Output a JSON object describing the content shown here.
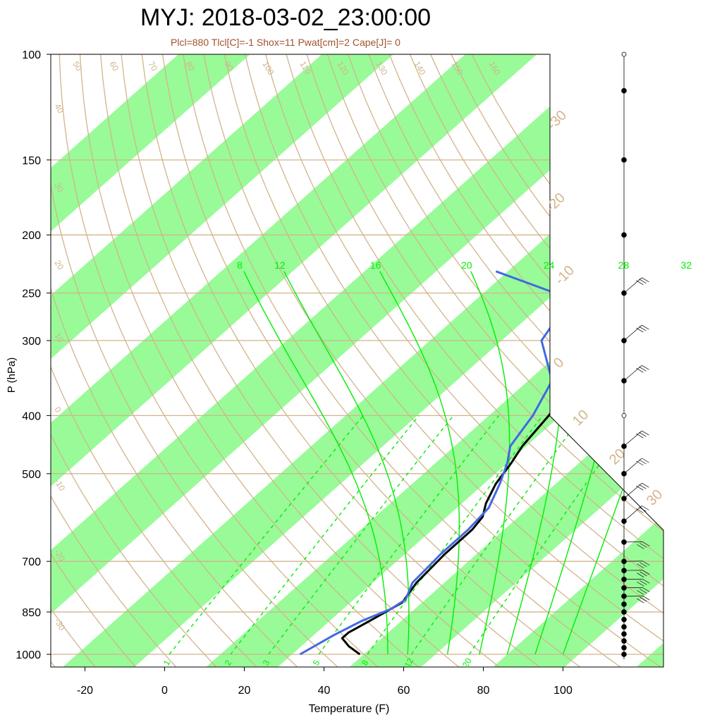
{
  "chart_data": {
    "type": "line",
    "title": "MYJ: 2018-03-02_23:00:00",
    "subtitle": "Plcl=880 Tlcl[C]=-1 Shox=11 Pwat[cm]=2 Cape[J]= 0",
    "xlabel": "Temperature (F)",
    "ylabel": "P (hPa)",
    "xlim": [
      -28,
      116
    ],
    "ylim": [
      1030,
      100
    ],
    "x_ticks": [
      -20,
      0,
      20,
      40,
      60,
      80,
      100
    ],
    "y_ticks": [
      100,
      150,
      200,
      250,
      300,
      400,
      500,
      700,
      850,
      1000
    ],
    "colors": {
      "band_fill": "#98fb98",
      "gridline": "#d2b48c",
      "mixing_ratio": "#00ee00",
      "temperature": "#000000",
      "dewpoint": "#4169e1",
      "subtitle": "#a0522d"
    },
    "skew_temp_labels_c": [
      "-30",
      "-20",
      "-10",
      "0",
      "10",
      "20",
      "30"
    ],
    "dry_adiabat_labels": [
      "50",
      "60",
      "70",
      "80",
      "90",
      "100",
      "110",
      "120",
      "130",
      "140",
      "150",
      "160"
    ],
    "left_edge_adiabat_labels": [
      "40",
      "30",
      "20",
      "10",
      "0",
      "-10",
      "-20",
      "-30"
    ],
    "moist_adiabat_labels": [
      "8",
      "12",
      "16",
      "20",
      "24",
      "28",
      "32"
    ],
    "mixing_ratio_labels": [
      "1",
      "2",
      "3",
      "5",
      "8",
      "12",
      "20"
    ],
    "series": [
      {
        "name": "temperature",
        "points": [
          {
            "p": 1000,
            "t": 49
          },
          {
            "p": 970,
            "t": 44
          },
          {
            "p": 940,
            "t": 40
          },
          {
            "p": 920,
            "t": 40
          },
          {
            "p": 880,
            "t": 42
          },
          {
            "p": 820,
            "t": 45
          },
          {
            "p": 760,
            "t": 43
          },
          {
            "p": 680,
            "t": 42
          },
          {
            "p": 620,
            "t": 42
          },
          {
            "p": 590,
            "t": 41
          },
          {
            "p": 560,
            "t": 38
          },
          {
            "p": 520,
            "t": 35
          },
          {
            "p": 480,
            "t": 33
          },
          {
            "p": 450,
            "t": 31
          },
          {
            "p": 400,
            "t": 29
          },
          {
            "p": 355,
            "t": 26
          },
          {
            "p": 330,
            "t": 21
          },
          {
            "p": 300,
            "t": 15
          },
          {
            "p": 270,
            "t": 12
          },
          {
            "p": 250,
            "t": 22
          },
          {
            "p": 232,
            "t": 31
          }
        ]
      },
      {
        "name": "dewpoint",
        "points": [
          {
            "p": 1000,
            "t": 34
          },
          {
            "p": 930,
            "t": 37
          },
          {
            "p": 880,
            "t": 40
          },
          {
            "p": 840,
            "t": 44
          },
          {
            "p": 810,
            "t": 45
          },
          {
            "p": 760,
            "t": 42
          },
          {
            "p": 680,
            "t": 41
          },
          {
            "p": 620,
            "t": 41
          },
          {
            "p": 570,
            "t": 40
          },
          {
            "p": 520,
            "t": 36
          },
          {
            "p": 480,
            "t": 32
          },
          {
            "p": 450,
            "t": 28
          },
          {
            "p": 400,
            "t": 25
          },
          {
            "p": 350,
            "t": 20
          },
          {
            "p": 300,
            "t": 6
          },
          {
            "p": 270,
            "t": 3
          },
          {
            "p": 250,
            "t": -4
          },
          {
            "p": 230,
            "t": -25
          }
        ]
      }
    ],
    "wind_profile_levels_hpa": [
      1000,
      975,
      950,
      925,
      900,
      875,
      850,
      825,
      800,
      775,
      750,
      725,
      700,
      650,
      600,
      550,
      500,
      450,
      350,
      300,
      250,
      200,
      150,
      115
    ]
  }
}
